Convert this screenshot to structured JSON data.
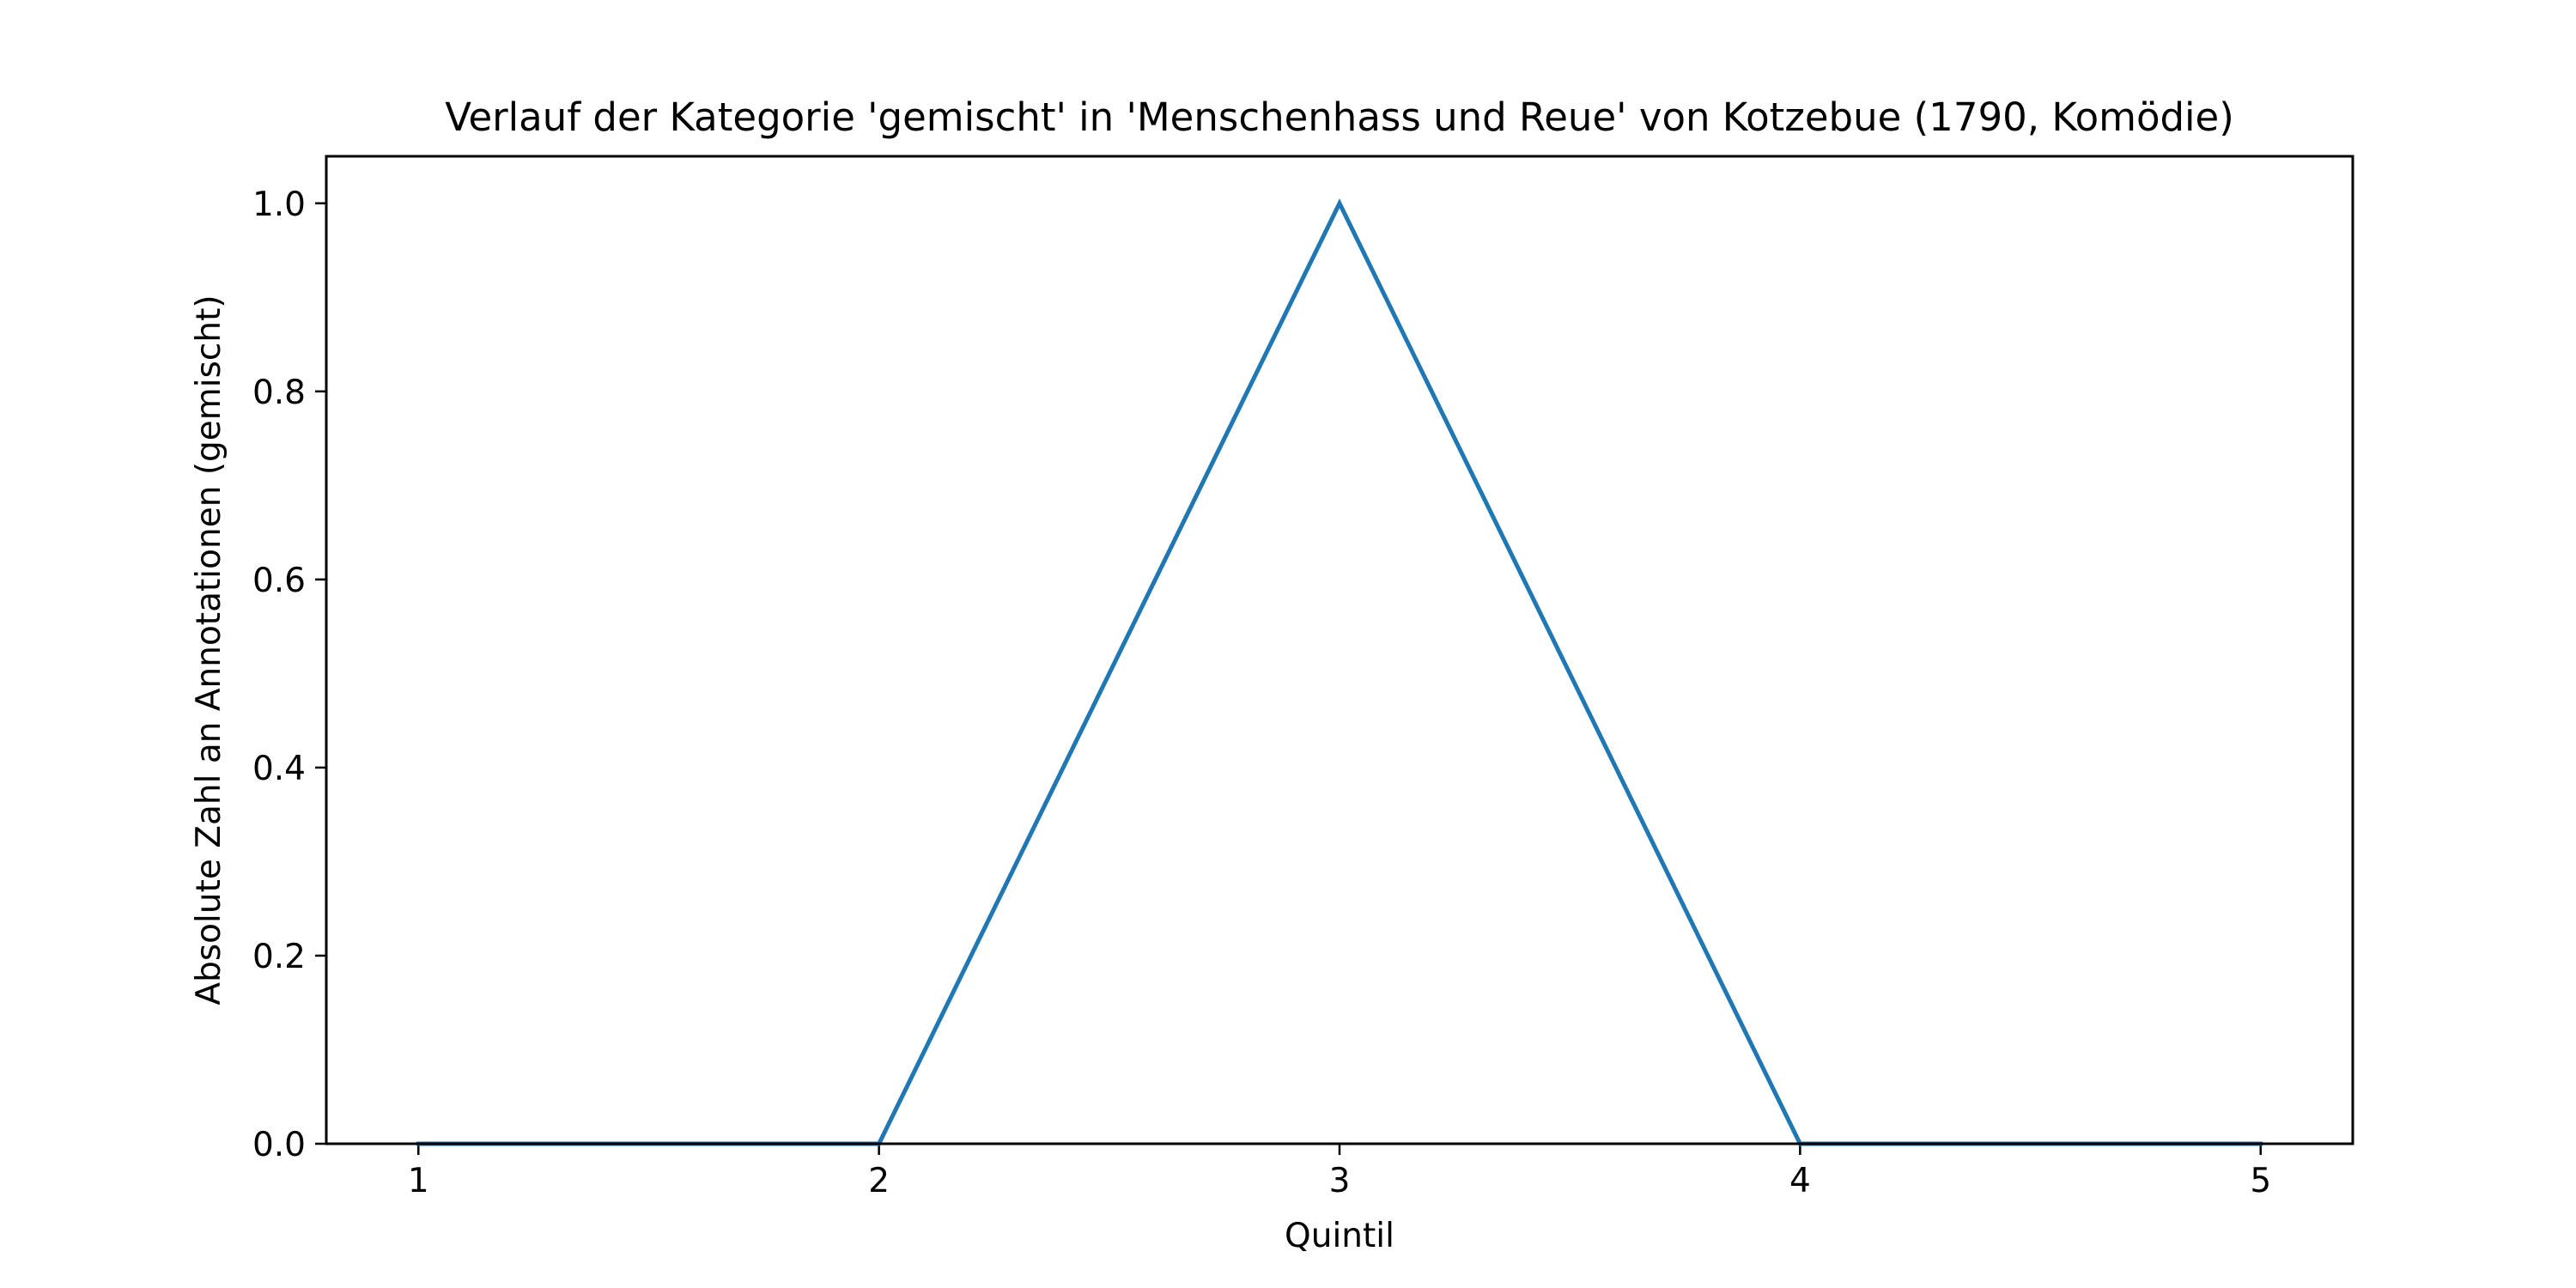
{
  "chart_data": {
    "type": "line",
    "title": "Verlauf der Kategorie 'gemischt' in 'Menschenhass und Reue' von Kotzebue (1790, Komödie)",
    "xlabel": "Quintil",
    "ylabel": "Absolute Zahl an Annotationen (gemischt)",
    "x": [
      1,
      2,
      3,
      4,
      5
    ],
    "series": [
      {
        "values": [
          0,
          0,
          1,
          0,
          0
        ],
        "color": "#1f77b4"
      }
    ],
    "xlim": [
      0.8,
      5.2
    ],
    "ylim": [
      0,
      1.05
    ],
    "xticks": [
      "1",
      "2",
      "3",
      "4",
      "5"
    ],
    "yticks": [
      "0.0",
      "0.2",
      "0.4",
      "0.6",
      "0.8",
      "1.0"
    ],
    "grid": false
  }
}
